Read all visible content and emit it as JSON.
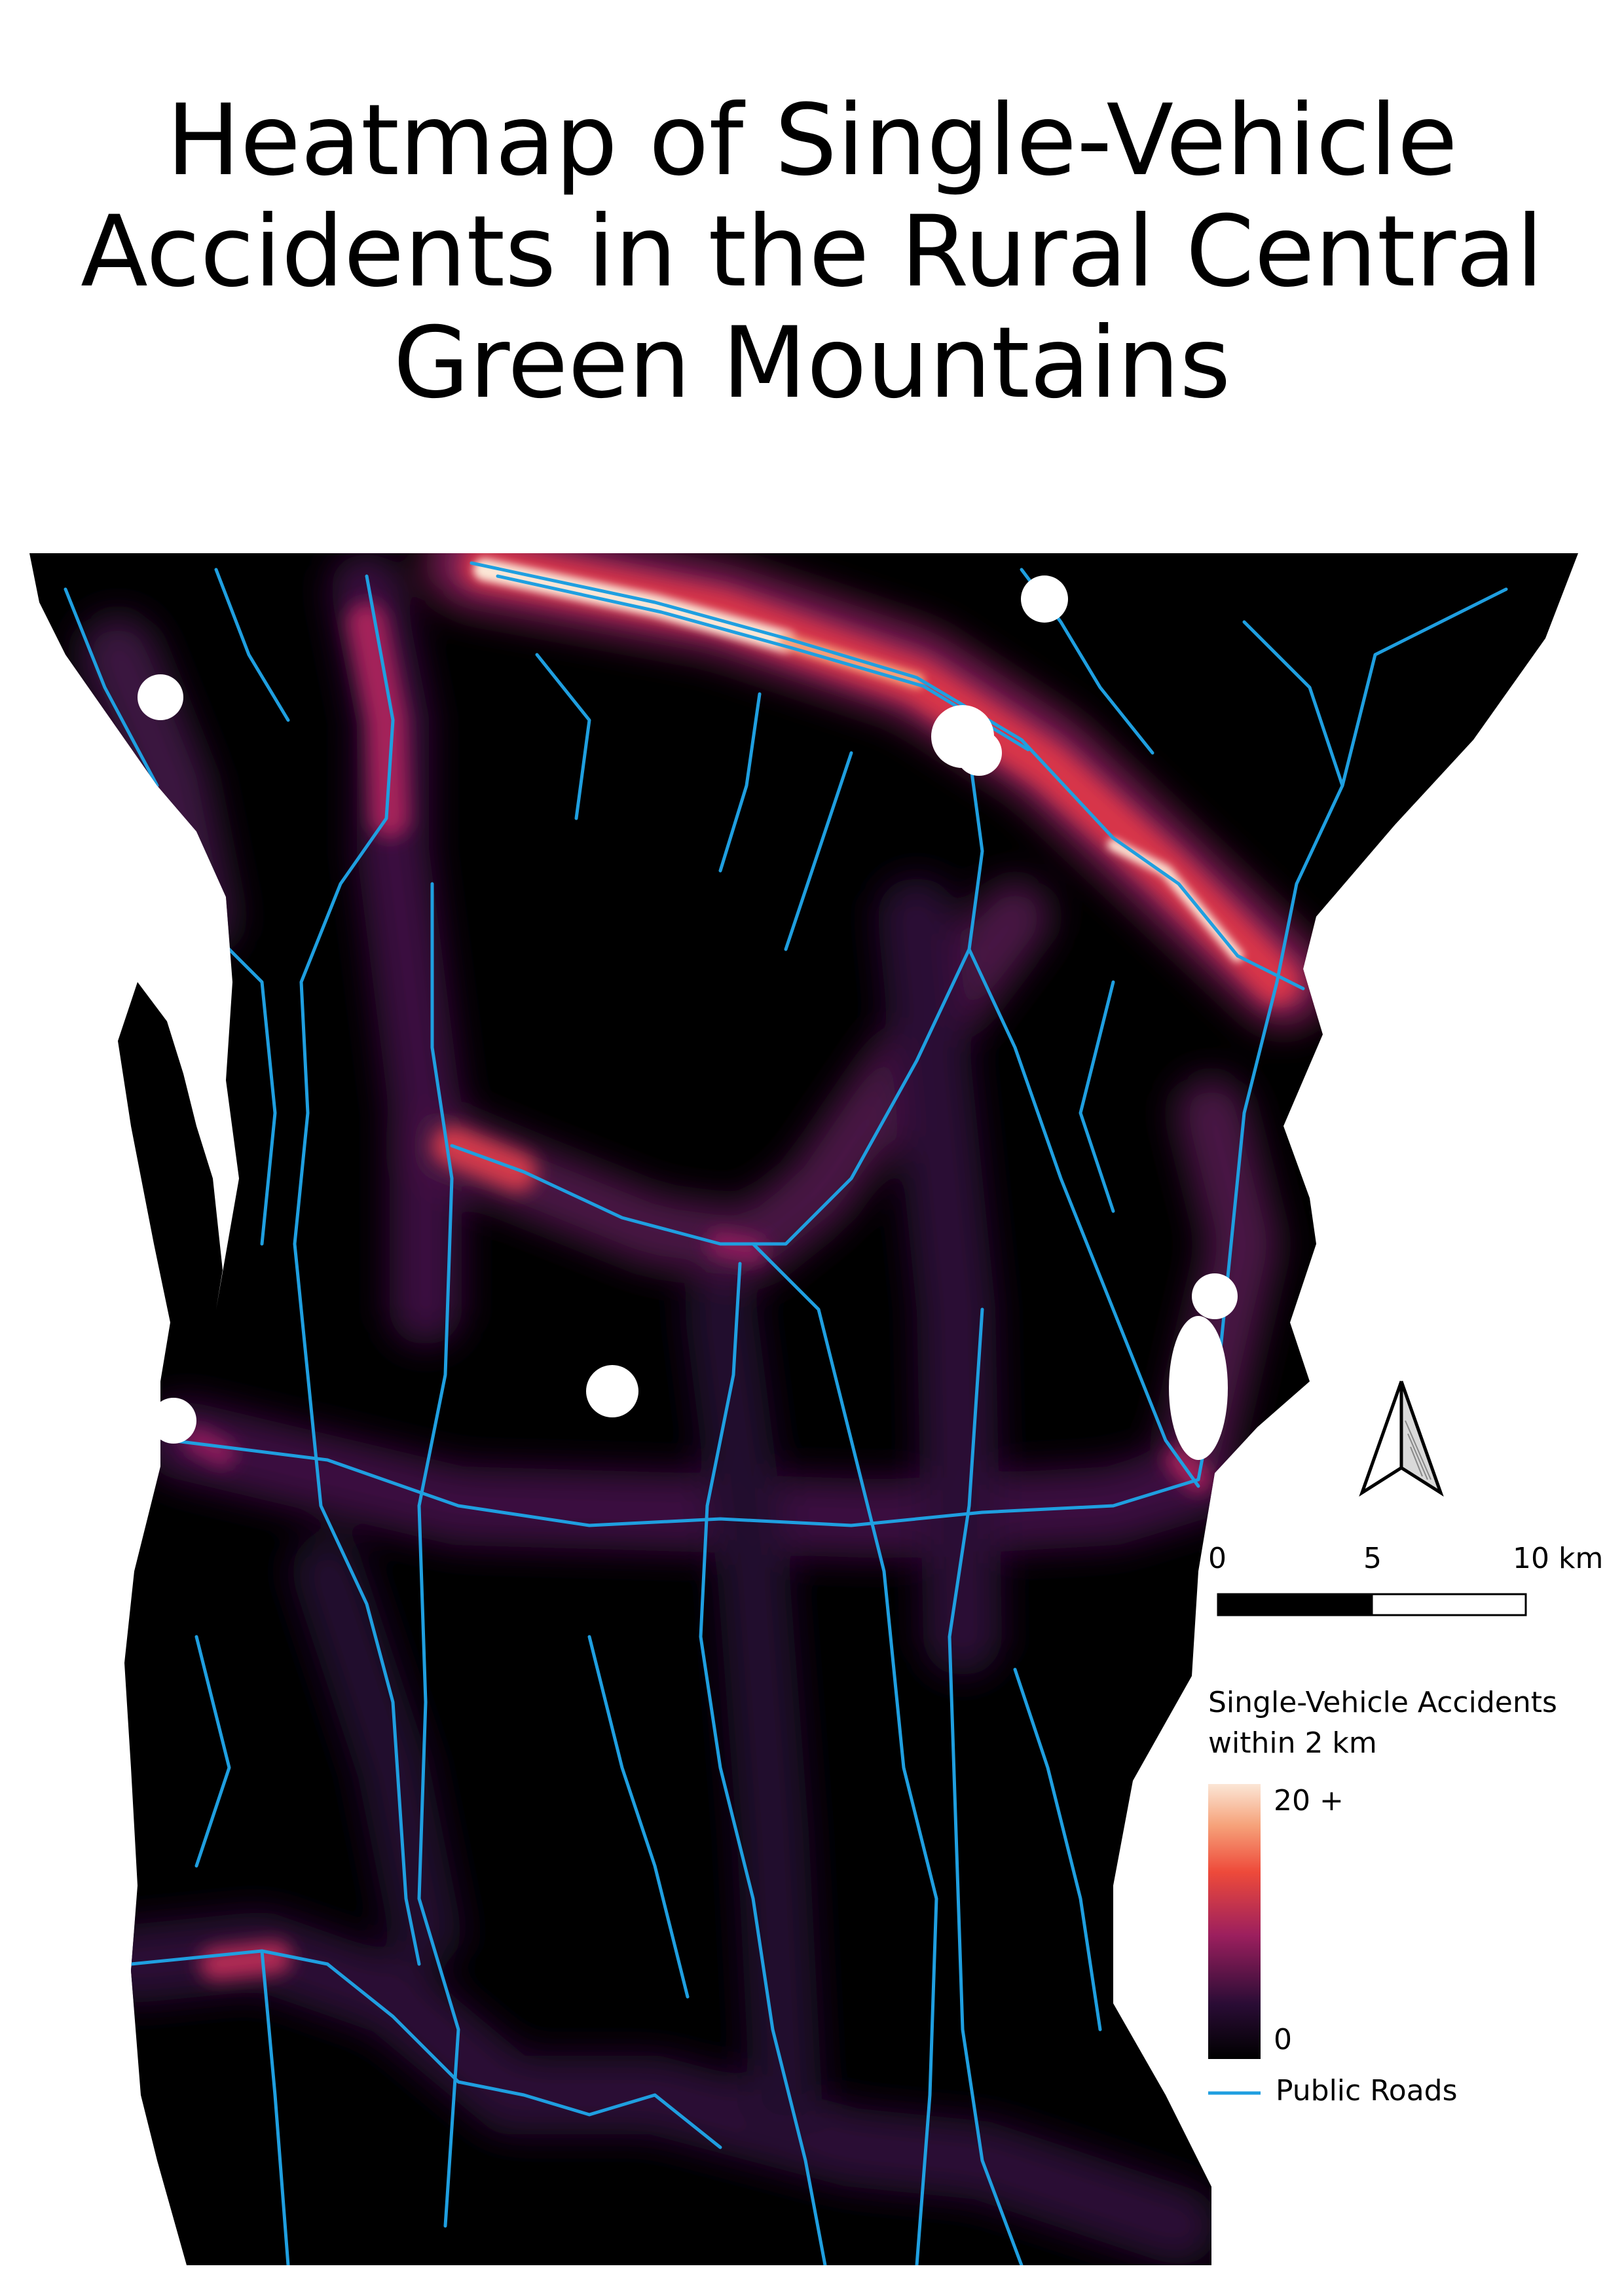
{
  "title": {
    "line1": "Heatmap of Single-Vehicle",
    "line2": "Accidents in the Rural Central",
    "line3": "Green Mountains"
  },
  "scalebar": {
    "labels": [
      "0",
      "5",
      "10 km"
    ]
  },
  "legend": {
    "heat_title_line1": "Single-Vehicle Accidents",
    "heat_title_line2": "within 2 km",
    "max_label": "20 +",
    "min_label": "0",
    "roads_label": "Public Roads"
  },
  "colors": {
    "background": "#000000",
    "roads": "#1f9fe0",
    "heat_low": "#1a0b25",
    "heat_mid": "#9c1f5e",
    "heat_high": "#ee4a3a",
    "heat_max": "#fbe6d6"
  },
  "icons": [
    "north-arrow-icon"
  ]
}
